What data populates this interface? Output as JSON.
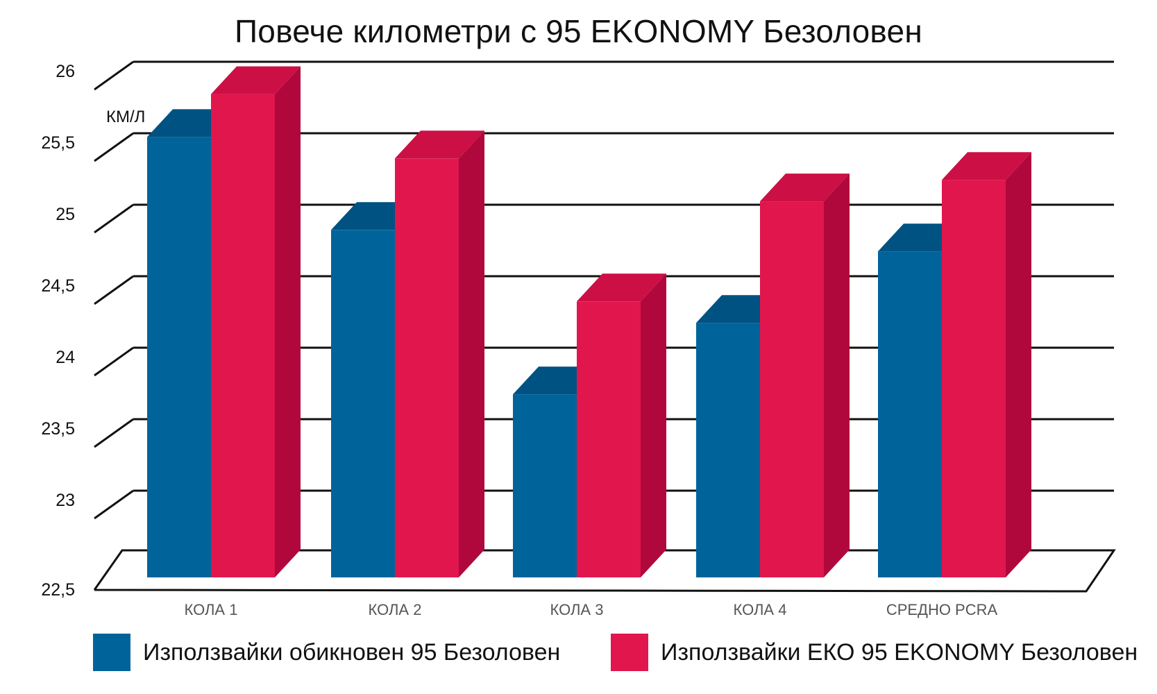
{
  "chart_data": {
    "type": "bar",
    "title": "Повече километри с 95 EKONOMY Безоловен",
    "unit_label": "КМ/Л",
    "categories": [
      "КОЛА 1",
      "КОЛА 2",
      "КОЛА 3",
      "КОЛА 4",
      "СРЕДНО PCRA"
    ],
    "series": [
      {
        "name": "Използвайки обикновен 95 Безоловен",
        "values": [
          25.6,
          24.95,
          23.8,
          24.3,
          24.8
        ]
      },
      {
        "name": "Използвайки ЕКО 95 EKONOMY Безоловен",
        "values": [
          25.9,
          25.45,
          24.45,
          25.15,
          25.3
        ]
      }
    ],
    "ylim": [
      22.5,
      26
    ],
    "yticks": [
      "22,5",
      "23",
      "23,5",
      "24",
      "24,5",
      "25",
      "25,5",
      "26"
    ],
    "grid": true,
    "legend_position": "bottom",
    "colors": {
      "blue_front": "#00649a",
      "blue_top": "#005282",
      "red_front": "#e1164d",
      "red_top": "#cc0f45",
      "red_side": "#b0083c",
      "grid": "#111111"
    }
  }
}
